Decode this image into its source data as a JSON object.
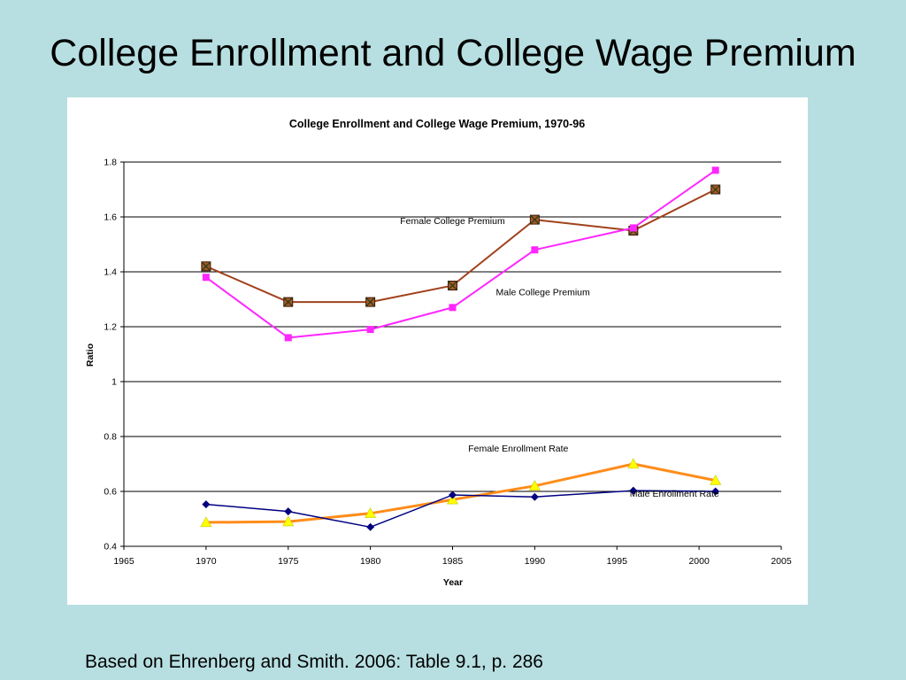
{
  "slide": {
    "title": "College Enrollment and College Wage Premium",
    "footnote": "Based on Ehrenberg and Smith. 2006: Table 9.1, p. 286"
  },
  "colors": {
    "background": "#b7dfe1",
    "female_premium": "#a0421c",
    "male_premium": "#ff26ff",
    "female_enrollment": "#ff8c1a",
    "male_enrollment": "#000080",
    "triangle_marker": "#ffff00"
  },
  "chart_data": {
    "type": "line",
    "title": "College Enrollment and College Wage Premium, 1970-96",
    "xlabel": "Year",
    "ylabel": "Ratio",
    "xlim": [
      1965,
      2005
    ],
    "ylim": [
      0.4,
      1.8
    ],
    "x_ticks": [
      "1965",
      "1970",
      "1975",
      "1980",
      "1985",
      "1990",
      "1995",
      "2000",
      "2005"
    ],
    "y_ticks": [
      "0.4",
      "0.6",
      "0.8",
      "1",
      "1.2",
      "1.4",
      "1.6",
      "1.8"
    ],
    "grid": "horizontal",
    "series": [
      {
        "key": "female_premium",
        "marker": "square-x",
        "x": [
          1970,
          1975,
          1980,
          1985,
          1990,
          1996,
          2001
        ],
        "y": [
          1.42,
          1.29,
          1.29,
          1.35,
          1.59,
          1.55,
          1.7
        ]
      },
      {
        "key": "male_premium",
        "marker": "square",
        "x": [
          1970,
          1975,
          1980,
          1985,
          1990,
          1996,
          2001
        ],
        "y": [
          1.38,
          1.16,
          1.19,
          1.27,
          1.48,
          1.56,
          1.77
        ]
      },
      {
        "key": "female_enrollment",
        "marker": "triangle",
        "x": [
          1970,
          1975,
          1980,
          1985,
          1990,
          1996,
          2001
        ],
        "y": [
          0.487,
          0.49,
          0.52,
          0.57,
          0.62,
          0.7,
          0.64
        ]
      },
      {
        "key": "male_enrollment",
        "marker": "diamond",
        "x": [
          1970,
          1975,
          1980,
          1985,
          1990,
          1996,
          2001
        ],
        "y": [
          0.553,
          0.527,
          0.47,
          0.587,
          0.58,
          0.603,
          0.6
        ]
      }
    ],
    "annotations": [
      {
        "text": "Female College Premium",
        "x": 1985,
        "y": 1.575,
        "anchor": "middle"
      },
      {
        "text": "Male College Premium",
        "x": 1990.5,
        "y": 1.315,
        "anchor": "middle"
      },
      {
        "text": "Female Enrollment Rate",
        "x": 1989,
        "y": 0.745,
        "anchor": "middle"
      },
      {
        "text": "Male Enrollment Rate",
        "x": 1998.5,
        "y": 0.58,
        "anchor": "middle"
      }
    ]
  }
}
